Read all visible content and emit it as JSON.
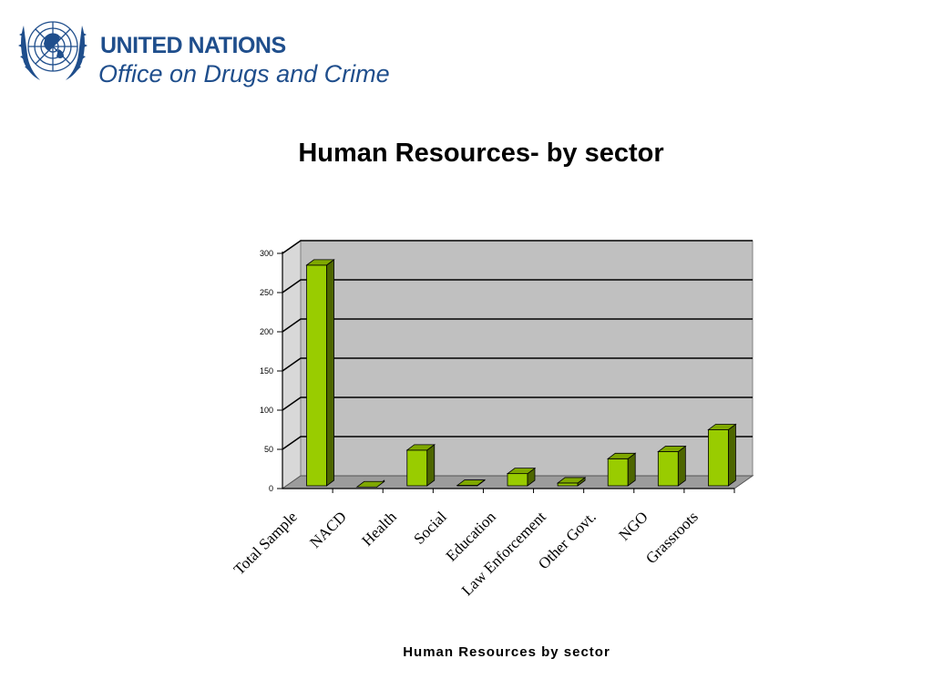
{
  "header": {
    "logo_line1": "UNITED NATIONS",
    "logo_line2": "Office on Drugs and Crime"
  },
  "page": {
    "title": "Human Resources- by sector"
  },
  "colors": {
    "brand": "#1f4e8c",
    "bar_front": "#99cc00",
    "bar_side": "#4d6600",
    "bar_top": "#7fa800",
    "plot_back": "#c0c0c0",
    "plot_floor": "#9c9c9c"
  },
  "chart_data": {
    "type": "bar",
    "style": "3d-column",
    "title": "",
    "xlabel": "Human Resources by sector",
    "ylabel": "",
    "ylim": [
      0,
      300
    ],
    "yticks": [
      0,
      50,
      100,
      150,
      200,
      250,
      300
    ],
    "grid": true,
    "categories": [
      "Total Sample",
      "NACD",
      "Health",
      "Social",
      "Education",
      "Law Enforcement",
      "Other Govt.",
      "NGO",
      "Grassroots"
    ],
    "series": [
      {
        "values": [
          292,
          9,
          56,
          11,
          26,
          14,
          45,
          54,
          82
        ]
      }
    ]
  }
}
